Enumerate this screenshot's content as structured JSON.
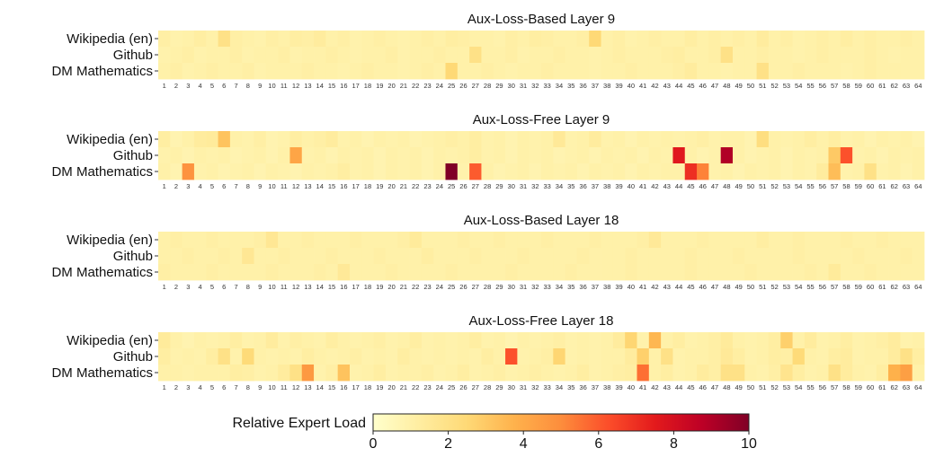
{
  "chart_data": {
    "type": "heatmap",
    "panels": [
      {
        "title": "Aux-Loss-Based Layer 9",
        "rows": [
          "Wikipedia (en)",
          "Github",
          "DM Mathematics"
        ],
        "values": [
          [
            1.1,
            0.9,
            1.0,
            1.2,
            1.0,
            2.0,
            1.1,
            1.0,
            0.9,
            1.1,
            1.0,
            1.2,
            1.1,
            1.3,
            1.0,
            1.1,
            0.9,
            1.0,
            1.1,
            1.0,
            0.9,
            1.0,
            1.1,
            1.0,
            1.2,
            1.1,
            1.0,
            1.0,
            0.9,
            1.1,
            1.0,
            1.2,
            1.1,
            1.0,
            1.0,
            1.1,
            2.5,
            1.0,
            1.1,
            0.9,
            1.0,
            1.1,
            1.0,
            1.0,
            1.2,
            1.0,
            1.1,
            1.0,
            1.1,
            1.0,
            1.3,
            1.0,
            1.1,
            0.9,
            1.0,
            1.1,
            1.0,
            1.2,
            1.0,
            1.1,
            1.0,
            1.0,
            1.1,
            1.0
          ],
          [
            0.9,
            1.0,
            1.1,
            0.9,
            1.0,
            1.0,
            1.1,
            0.9,
            1.0,
            1.0,
            1.1,
            0.9,
            1.0,
            1.0,
            1.1,
            1.0,
            0.9,
            1.0,
            1.0,
            1.1,
            0.9,
            1.0,
            1.0,
            1.1,
            1.0,
            1.0,
            2.0,
            1.0,
            1.0,
            1.1,
            0.9,
            1.0,
            1.0,
            1.1,
            1.0,
            1.0,
            0.9,
            1.0,
            1.1,
            1.0,
            1.0,
            1.0,
            1.1,
            1.2,
            1.0,
            1.0,
            1.1,
            2.0,
            1.0,
            1.0,
            1.1,
            1.0,
            1.0,
            0.9,
            1.0,
            1.1,
            1.0,
            1.0,
            1.0,
            1.1,
            1.0,
            0.9,
            1.0,
            1.0
          ],
          [
            1.0,
            1.1,
            0.9,
            1.0,
            1.1,
            1.0,
            1.0,
            1.1,
            0.9,
            1.0,
            1.0,
            1.0,
            1.1,
            1.0,
            1.0,
            0.9,
            1.0,
            1.1,
            1.0,
            1.0,
            0.9,
            1.0,
            1.1,
            1.0,
            2.5,
            1.0,
            1.0,
            1.1,
            1.0,
            0.9,
            1.0,
            1.0,
            1.1,
            1.0,
            1.0,
            1.0,
            0.9,
            1.0,
            1.0,
            1.1,
            1.0,
            1.0,
            1.0,
            1.1,
            1.3,
            1.0,
            1.0,
            0.9,
            1.0,
            1.0,
            2.0,
            1.0,
            1.0,
            1.1,
            1.0,
            1.0,
            1.0,
            0.9,
            1.0,
            1.1,
            1.0,
            1.0,
            1.0,
            1.0
          ]
        ]
      },
      {
        "title": "Aux-Loss-Free Layer 9",
        "rows": [
          "Wikipedia (en)",
          "Github",
          "DM Mathematics"
        ],
        "values": [
          [
            1.2,
            0.8,
            1.0,
            1.3,
            1.4,
            3.2,
            1.0,
            0.9,
            1.1,
            0.8,
            0.9,
            1.2,
            1.0,
            1.1,
            1.3,
            0.9,
            1.0,
            0.8,
            1.0,
            0.9,
            1.0,
            0.8,
            0.9,
            1.0,
            1.1,
            1.0,
            1.2,
            0.9,
            1.0,
            0.8,
            1.0,
            0.9,
            1.0,
            1.5,
            0.9,
            1.0,
            1.3,
            0.9,
            1.0,
            0.8,
            1.0,
            0.9,
            1.0,
            0.9,
            1.0,
            1.1,
            0.9,
            1.0,
            1.0,
            0.8,
            2.2,
            1.0,
            0.9,
            1.0,
            1.2,
            1.0,
            1.2,
            0.9,
            1.0,
            0.8,
            1.0,
            0.9,
            1.0,
            0.8
          ],
          [
            0.9,
            1.0,
            0.8,
            1.0,
            0.9,
            1.0,
            0.8,
            0.9,
            1.0,
            0.8,
            1.0,
            4.2,
            0.9,
            1.0,
            0.8,
            1.0,
            0.9,
            1.0,
            0.8,
            1.0,
            0.9,
            1.0,
            0.8,
            1.0,
            0.9,
            1.0,
            1.2,
            0.9,
            1.0,
            0.8,
            1.0,
            0.9,
            1.0,
            0.8,
            0.9,
            1.0,
            0.8,
            1.0,
            0.9,
            1.0,
            0.8,
            1.0,
            0.9,
            7.6,
            1.0,
            0.8,
            0.9,
            9.0,
            1.0,
            0.8,
            0.9,
            1.0,
            0.8,
            1.0,
            0.9,
            1.0,
            3.0,
            6.2,
            0.9,
            1.0,
            0.8,
            1.0,
            0.9,
            1.0
          ],
          [
            1.0,
            0.8,
            4.8,
            0.9,
            1.0,
            0.8,
            0.9,
            1.0,
            0.8,
            1.0,
            0.9,
            0.8,
            1.0,
            0.9,
            1.0,
            1.2,
            0.9,
            1.0,
            0.8,
            1.0,
            0.9,
            1.0,
            0.8,
            1.0,
            10.0,
            0.9,
            6.0,
            1.0,
            0.8,
            0.9,
            1.0,
            0.8,
            1.0,
            0.9,
            1.0,
            0.8,
            1.0,
            0.9,
            1.0,
            0.8,
            1.0,
            0.9,
            1.0,
            1.0,
            7.0,
            5.2,
            0.9,
            1.0,
            0.8,
            1.0,
            0.9,
            1.0,
            0.8,
            1.0,
            0.9,
            1.3,
            3.4,
            0.9,
            1.0,
            2.0,
            0.9,
            1.0,
            0.8,
            1.0
          ]
        ]
      },
      {
        "title": "Aux-Loss-Based Layer 18",
        "rows": [
          "Wikipedia (en)",
          "Github",
          "DM Mathematics"
        ],
        "values": [
          [
            1.0,
            1.1,
            1.0,
            1.0,
            1.1,
            1.0,
            1.0,
            1.0,
            1.1,
            1.6,
            1.0,
            1.0,
            1.1,
            1.0,
            1.0,
            1.0,
            1.1,
            1.0,
            1.0,
            1.0,
            1.1,
            1.4,
            1.0,
            1.0,
            1.0,
            1.1,
            1.0,
            1.0,
            1.1,
            1.0,
            1.0,
            1.0,
            1.1,
            1.0,
            1.0,
            1.0,
            1.1,
            1.0,
            1.0,
            1.0,
            1.1,
            1.5,
            1.0,
            1.0,
            1.0,
            1.1,
            1.0,
            1.0,
            1.0,
            1.0,
            1.2,
            1.0,
            1.0,
            1.1,
            1.0,
            1.0,
            1.0,
            1.1,
            1.0,
            1.0,
            1.1,
            1.0,
            1.0,
            1.0
          ],
          [
            1.0,
            1.0,
            1.1,
            1.0,
            1.0,
            1.1,
            1.0,
            1.6,
            1.0,
            1.0,
            1.1,
            1.0,
            1.0,
            1.0,
            1.1,
            1.0,
            1.0,
            1.0,
            1.1,
            1.0,
            1.0,
            1.0,
            1.2,
            1.0,
            1.0,
            1.0,
            1.1,
            1.0,
            1.0,
            1.0,
            1.1,
            1.0,
            1.0,
            1.0,
            1.0,
            1.1,
            1.0,
            1.0,
            1.0,
            1.1,
            1.0,
            1.0,
            1.0,
            1.0,
            1.1,
            1.0,
            1.0,
            1.0,
            1.1,
            1.0,
            1.0,
            1.0,
            1.0,
            1.1,
            1.0,
            1.0,
            1.0,
            1.0,
            1.1,
            1.0,
            1.0,
            1.0,
            1.1,
            1.0
          ],
          [
            1.1,
            1.0,
            1.0,
            1.0,
            1.1,
            1.0,
            1.0,
            1.0,
            1.0,
            1.1,
            1.0,
            1.0,
            1.0,
            1.1,
            1.0,
            1.5,
            1.0,
            1.0,
            1.0,
            1.1,
            1.0,
            1.0,
            1.0,
            1.0,
            1.1,
            1.0,
            1.0,
            1.0,
            1.0,
            1.1,
            1.0,
            1.0,
            1.0,
            1.0,
            1.1,
            1.0,
            1.0,
            1.0,
            1.0,
            1.1,
            1.0,
            1.0,
            1.0,
            1.0,
            1.1,
            1.0,
            1.0,
            1.0,
            1.0,
            1.1,
            1.0,
            1.0,
            1.0,
            1.0,
            1.1,
            1.0,
            1.4,
            1.0,
            1.0,
            1.1,
            1.0,
            1.0,
            1.0,
            1.0
          ]
        ]
      },
      {
        "title": "Aux-Loss-Free Layer 18",
        "rows": [
          "Wikipedia (en)",
          "Github",
          "DM Mathematics"
        ],
        "values": [
          [
            1.4,
            1.0,
            0.8,
            1.0,
            0.9,
            1.0,
            1.2,
            0.9,
            1.0,
            1.3,
            0.9,
            1.1,
            1.0,
            0.9,
            1.2,
            1.0,
            0.9,
            1.0,
            1.1,
            0.9,
            1.0,
            1.2,
            0.9,
            1.0,
            0.9,
            1.0,
            1.2,
            0.9,
            1.0,
            0.8,
            1.0,
            0.9,
            1.0,
            1.1,
            0.9,
            1.0,
            0.9,
            1.0,
            1.3,
            2.6,
            0.9,
            3.6,
            1.0,
            1.2,
            0.9,
            1.0,
            1.1,
            1.4,
            1.0,
            0.9,
            1.0,
            1.2,
            2.8,
            1.0,
            1.3,
            0.9,
            1.0,
            1.2,
            0.9,
            1.0,
            1.1,
            1.3,
            0.9,
            1.0
          ],
          [
            1.2,
            0.9,
            1.0,
            0.9,
            1.2,
            2.0,
            0.9,
            2.4,
            1.0,
            0.9,
            1.0,
            0.9,
            1.2,
            1.0,
            0.9,
            1.0,
            1.1,
            0.9,
            1.0,
            0.9,
            1.2,
            1.0,
            0.9,
            1.0,
            0.9,
            1.0,
            0.9,
            1.2,
            1.0,
            6.2,
            0.9,
            1.0,
            1.1,
            2.6,
            0.9,
            1.0,
            0.9,
            1.0,
            1.0,
            1.3,
            2.8,
            1.0,
            2.0,
            0.9,
            1.0,
            1.0,
            1.1,
            1.5,
            1.2,
            0.9,
            1.0,
            1.2,
            1.1,
            2.4,
            1.0,
            0.9,
            1.2,
            1.3,
            0.9,
            1.0,
            1.0,
            1.3,
            2.0,
            1.2
          ],
          [
            1.0,
            1.0,
            0.9,
            1.0,
            1.0,
            1.0,
            1.2,
            1.1,
            0.9,
            1.0,
            1.3,
            2.0,
            4.6,
            0.9,
            1.1,
            3.2,
            0.9,
            1.0,
            1.2,
            0.9,
            1.0,
            1.0,
            1.1,
            0.9,
            1.0,
            1.2,
            0.9,
            1.0,
            1.1,
            0.9,
            1.0,
            1.1,
            1.0,
            0.9,
            1.0,
            1.2,
            0.9,
            1.0,
            1.1,
            1.2,
            5.6,
            1.0,
            1.2,
            0.9,
            1.0,
            1.3,
            1.1,
            2.0,
            2.0,
            1.0,
            0.9,
            1.1,
            1.8,
            1.2,
            0.9,
            1.0,
            2.0,
            1.3,
            1.0,
            0.9,
            1.2,
            3.8,
            4.4,
            1.0
          ]
        ]
      }
    ],
    "xticks": [
      "1",
      "2",
      "3",
      "4",
      "5",
      "6",
      "7",
      "8",
      "9",
      "10",
      "11",
      "12",
      "13",
      "14",
      "15",
      "16",
      "17",
      "18",
      "19",
      "20",
      "21",
      "22",
      "23",
      "24",
      "25",
      "26",
      "27",
      "28",
      "29",
      "30",
      "31",
      "32",
      "33",
      "34",
      "35",
      "36",
      "37",
      "38",
      "39",
      "40",
      "41",
      "42",
      "43",
      "44",
      "45",
      "46",
      "47",
      "48",
      "49",
      "50",
      "51",
      "52",
      "53",
      "54",
      "55",
      "56",
      "57",
      "58",
      "59",
      "60",
      "61",
      "62",
      "63",
      "64"
    ],
    "colorbar": {
      "label": "Relative Expert Load",
      "range": [
        0,
        10
      ],
      "ticks": [
        "0",
        "2",
        "4",
        "6",
        "8",
        "10"
      ],
      "colormap": [
        "#ffffcc",
        "#ffeda0",
        "#fed976",
        "#feb24c",
        "#fd8d3c",
        "#fc4e2a",
        "#e31a1c",
        "#bd0026",
        "#800026"
      ]
    }
  }
}
